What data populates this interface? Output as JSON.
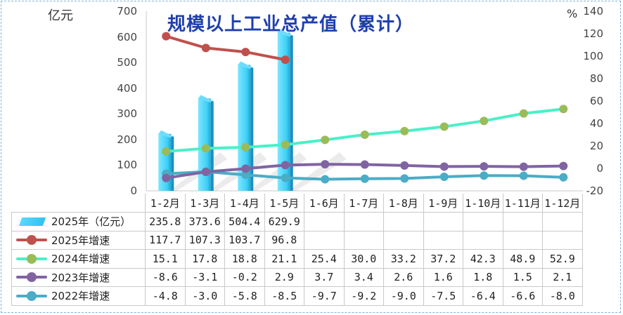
{
  "title": "规模以上工业总产值（累计）",
  "left_unit": "亿元",
  "right_unit": "%",
  "left_ticks": [
    "700",
    "600",
    "500",
    "400",
    "300",
    "200",
    "100",
    "0"
  ],
  "right_ticks": [
    "140",
    "120",
    "100",
    "80",
    "60",
    "40",
    "20",
    "0",
    "-20"
  ],
  "colors": {
    "bar": "#3fd0f7",
    "s2025": "#c0504d",
    "s2024": "#9bbb59",
    "s2024_line": "#4af0c8",
    "s2023": "#8064a2",
    "s2022": "#4bacc6"
  },
  "chart_data": {
    "type": "bar",
    "categories": [
      "1-2月",
      "1-3月",
      "1-4月",
      "1-5月",
      "1-6月",
      "1-7月",
      "1-8月",
      "1-9月",
      "1-10月",
      "1-11月",
      "1-12月"
    ],
    "title": "规模以上工业总产值（累计）",
    "ylim_left": [
      0,
      700
    ],
    "ylim_right": [
      -20,
      140
    ],
    "series": [
      {
        "name": "2025年（亿元）",
        "type": "bar",
        "axis": "left",
        "values": [
          235.8,
          373.6,
          504.4,
          629.9,
          null,
          null,
          null,
          null,
          null,
          null,
          null
        ]
      },
      {
        "name": "2025年增速",
        "type": "line",
        "axis": "right",
        "values": [
          117.7,
          107.3,
          103.7,
          96.8,
          null,
          null,
          null,
          null,
          null,
          null,
          null
        ]
      },
      {
        "name": "2024年增速",
        "type": "line",
        "axis": "right",
        "values": [
          15.1,
          17.8,
          18.8,
          21.1,
          25.4,
          30.0,
          33.2,
          37.2,
          42.3,
          48.9,
          52.9
        ]
      },
      {
        "name": "2023年增速",
        "type": "line",
        "axis": "right",
        "values": [
          -8.6,
          -3.1,
          -0.2,
          2.9,
          3.7,
          3.4,
          2.6,
          1.6,
          1.8,
          1.5,
          2.1
        ]
      },
      {
        "name": "2022年增速",
        "type": "line",
        "axis": "right",
        "values": [
          -4.8,
          -3.0,
          -5.8,
          -8.5,
          -9.7,
          -9.2,
          -9.0,
          -7.5,
          -6.4,
          -6.6,
          -8.0
        ]
      }
    ]
  },
  "table": {
    "rows": [
      {
        "label": "2025年（亿元）",
        "cells": [
          "235.8",
          "373.6",
          "504.4",
          "629.9",
          "",
          "",
          "",
          "",
          "",
          "",
          ""
        ]
      },
      {
        "label": "2025年增速",
        "cells": [
          "117.7",
          "107.3",
          "103.7",
          "96.8",
          "",
          "",
          "",
          "",
          "",
          "",
          ""
        ]
      },
      {
        "label": "2024年增速",
        "cells": [
          "15.1",
          "17.8",
          "18.8",
          "21.1",
          "25.4",
          "30.0",
          "33.2",
          "37.2",
          "42.3",
          "48.9",
          "52.9"
        ]
      },
      {
        "label": "2023年增速",
        "cells": [
          "-8.6",
          "-3.1",
          "-0.2",
          "2.9",
          "3.7",
          "3.4",
          "2.6",
          "1.6",
          "1.8",
          "1.5",
          "2.1"
        ]
      },
      {
        "label": "2022年增速",
        "cells": [
          "-4.8",
          "-3.0",
          "-5.8",
          "-8.5",
          "-9.7",
          "-9.2",
          "-9.0",
          "-7.5",
          "-6.4",
          "-6.6",
          "-8.0"
        ]
      }
    ]
  }
}
